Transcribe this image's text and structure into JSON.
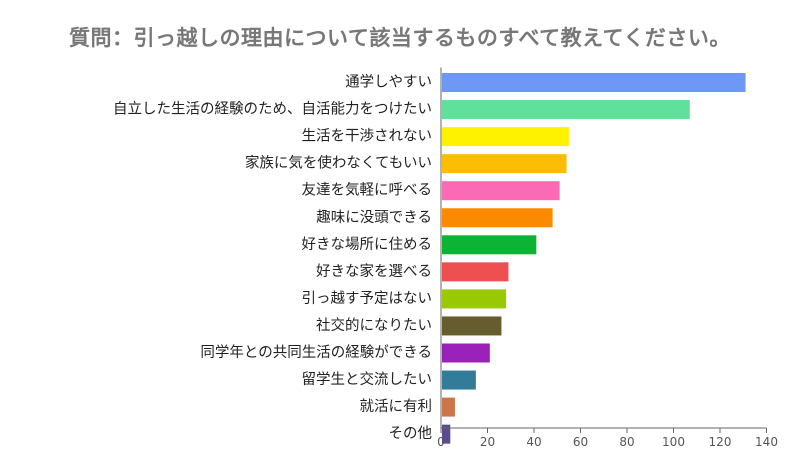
{
  "chart_data": {
    "type": "bar",
    "orientation": "horizontal",
    "title": "質問：引っ越しの理由について該当するものすべて教えてください。",
    "xlabel": "",
    "ylabel": "",
    "xlim": [
      0,
      140
    ],
    "xticks": [
      0,
      20,
      40,
      60,
      80,
      100,
      120,
      140
    ],
    "grid": false,
    "categories": [
      "通学しやすい",
      "自立した生活の経験のため、自活能力をつけたい",
      "生活を干渉されない",
      "家族に気を使わなくてもいい",
      "友達を気軽に呼べる",
      "趣味に没頭できる",
      "好きな場所に住める",
      "好きな家を選べる",
      "引っ越す予定はない",
      "社交的になりたい",
      "同学年との共同生活の経験ができる",
      "留学生と交流したい",
      "就活に有利",
      "その他"
    ],
    "values": [
      131,
      107,
      55,
      54,
      51,
      48,
      41,
      29,
      28,
      26,
      21,
      15,
      6,
      4
    ],
    "colors": [
      "#6f97f5",
      "#5fe09b",
      "#fff200",
      "#fcbd04",
      "#fb6ab4",
      "#fb8a01",
      "#0db332",
      "#ee4f50",
      "#99c902",
      "#665c2e",
      "#9b21bb",
      "#337c99",
      "#cb7549",
      "#5d4b90"
    ]
  }
}
